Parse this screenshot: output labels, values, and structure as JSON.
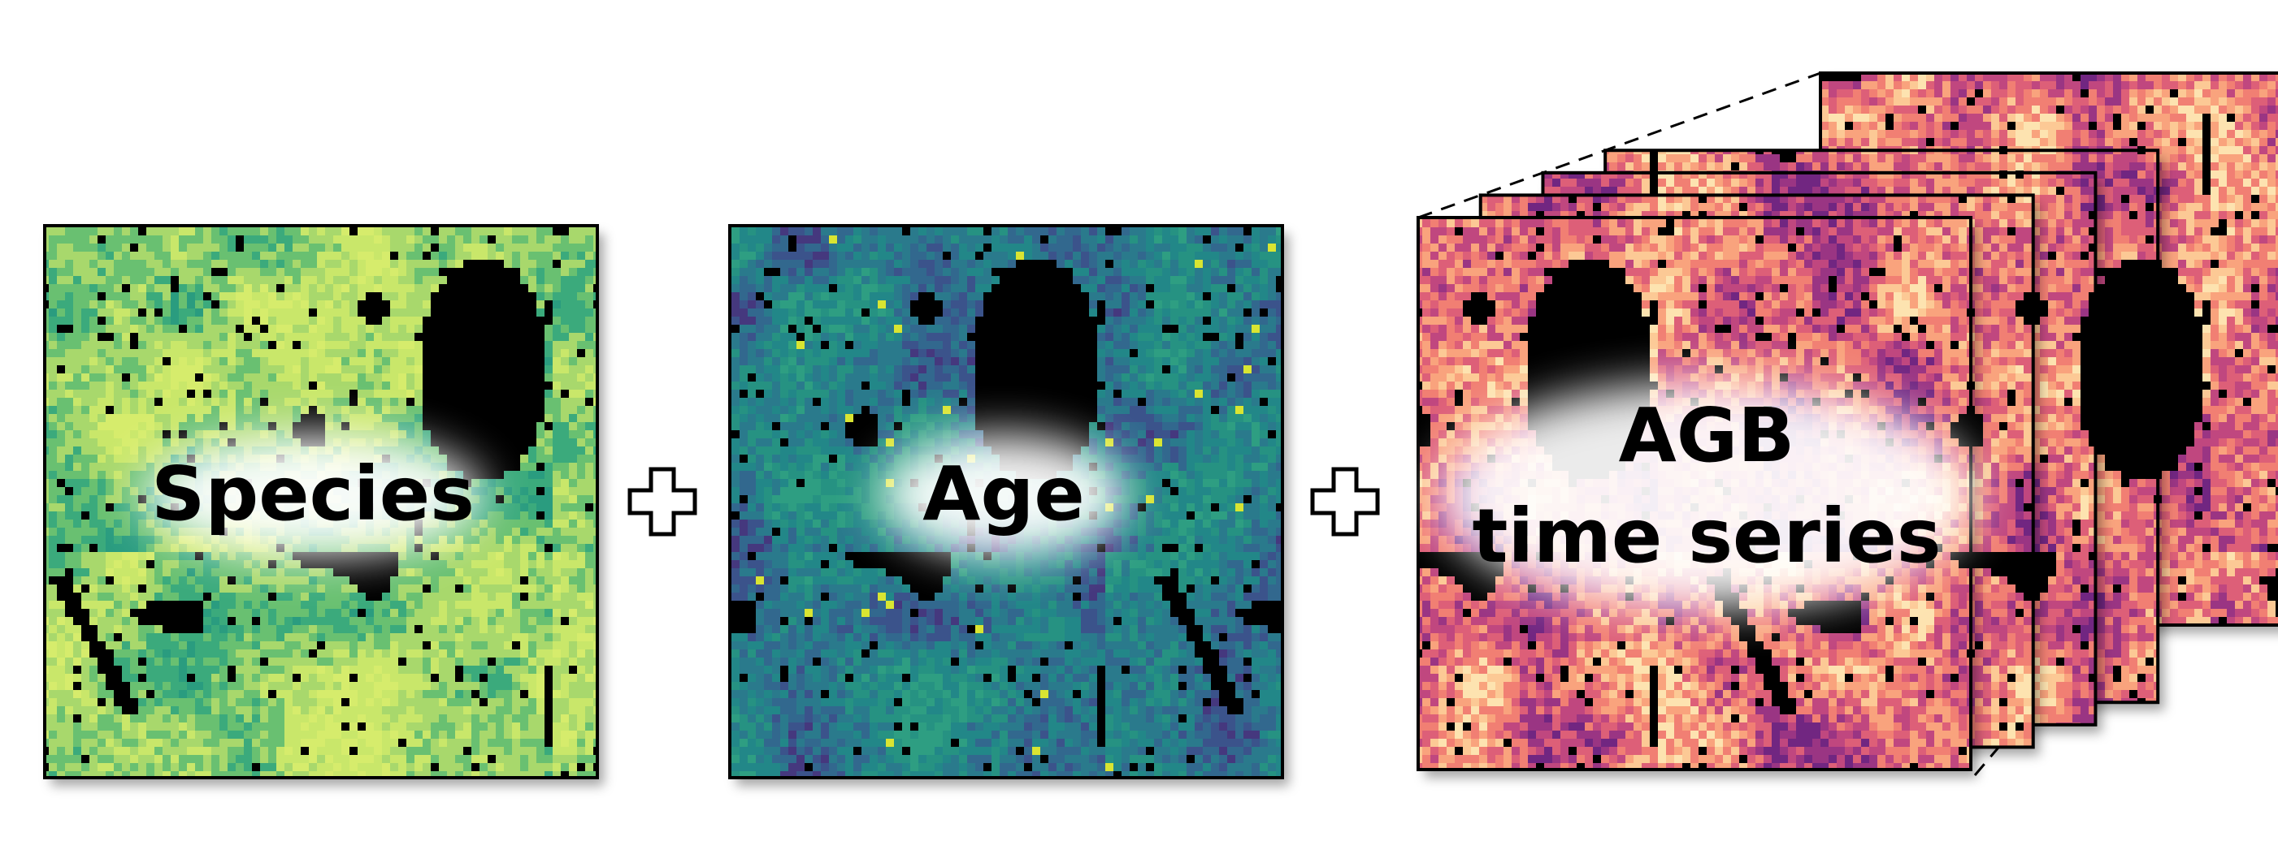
{
  "panels": [
    {
      "id": "species",
      "label_lines": [
        "Species"
      ],
      "palette": [
        "#d6ec6c",
        "#c9e76a",
        "#a8d86c",
        "#69c071",
        "#3aaa7b",
        "#2a9c7f"
      ]
    },
    {
      "id": "age",
      "label_lines": [
        "Age"
      ],
      "palette": [
        "#2f9e82",
        "#259282",
        "#218788",
        "#2a7a8c",
        "#31688e",
        "#3b528b",
        "#45397e",
        "#d9e530"
      ]
    },
    {
      "id": "agb",
      "label_lines": [
        "AGB",
        "time series"
      ],
      "palette": [
        "#fde3b0",
        "#fcc995",
        "#f9a37d",
        "#f17f73",
        "#dd5e78",
        "#c0467f",
        "#9a3483",
        "#712681"
      ],
      "stack_layers": 5
    }
  ],
  "operators": [
    "plus",
    "plus"
  ],
  "colors": {
    "border": "#000000",
    "water": "#000000",
    "operator_stroke": "#000000",
    "operator_fill": "#ffffff"
  }
}
